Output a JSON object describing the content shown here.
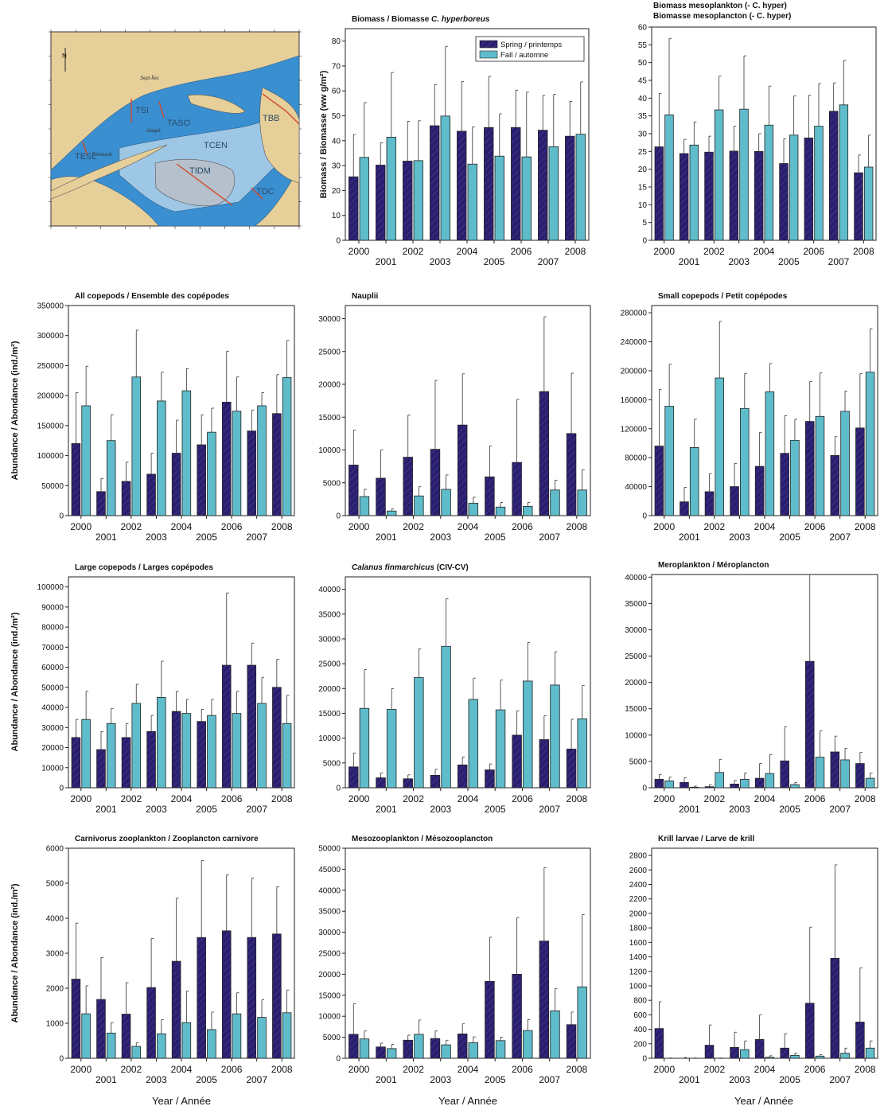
{
  "colors": {
    "spring": "#2a1f6e",
    "fall": "#5fbccb",
    "map_land": "#e7cf9a",
    "map_deep": "#3a8fd0",
    "map_shelf": "#9ec7e6",
    "map_island": "#b5c0cc",
    "map_section": "#d04a2a"
  },
  "legend": {
    "spring": "Spring / printemps",
    "fall": "Fall / automne"
  },
  "shared": {
    "ylabel_biomass": "Biomass / Biomasse (ww g/m²)",
    "ylabel_abundance": "Abundance / Abondance (ind./m²)",
    "xlabel": "Year / Année"
  },
  "map": {
    "labels": [
      "TESL",
      "TSI",
      "TASO",
      "TBB",
      "TCEN",
      "TIDM",
      "TDC"
    ],
    "places": [
      "Sept-Îles",
      "Gaspé",
      "Rimouski"
    ],
    "north": "N"
  },
  "chart_data": [
    {
      "type": "bar",
      "title": "Biomass / Biomasse C. hyperboreus",
      "title_parts": [
        "Biomass / Biomasse ",
        "C. hyperboreus"
      ],
      "ylim": [
        0,
        85
      ],
      "yticks": [
        0,
        10,
        20,
        30,
        40,
        50,
        60,
        70,
        80
      ],
      "years": [
        "2000",
        "2001",
        "2002",
        "2003",
        "2004",
        "2005",
        "2006",
        "2007",
        "2008"
      ],
      "series": [
        {
          "name": "Spring / printemps",
          "values": [
            25.5,
            30.2,
            31.8,
            46,
            43.8,
            45.3,
            45.3,
            44.2,
            41.8
          ],
          "errors": [
            17,
            9,
            16,
            16.5,
            20,
            20.5,
            15,
            14,
            14
          ]
        },
        {
          "name": "Fall / automne",
          "values": [
            33.3,
            41.4,
            32,
            49.9,
            30.6,
            33.8,
            33.5,
            37.6,
            42.6
          ],
          "errors": [
            22,
            26,
            16,
            28,
            15,
            17,
            26,
            21,
            21
          ]
        }
      ]
    },
    {
      "type": "bar",
      "title": "Biomass mesoplankton (- C. hyper) / Biomasse mesoplancton (- C. hyper)",
      "title_lines": [
        "Biomass mesoplankton (-  C. hyper)",
        "Biomasse mesoplancton (-  C. hyper)"
      ],
      "ylim": [
        0,
        60
      ],
      "yticks": [
        0,
        5,
        10,
        15,
        20,
        25,
        30,
        35,
        40,
        45,
        50,
        55,
        60
      ],
      "years": [
        "2000",
        "2001",
        "2002",
        "2003",
        "2004",
        "2005",
        "2006",
        "2007",
        "2008"
      ],
      "series": [
        {
          "name": "Spring / printemps",
          "values": [
            26.3,
            24.4,
            24.8,
            25.1,
            25,
            21.6,
            28.8,
            36.3,
            19
          ],
          "errors": [
            15,
            4,
            4.5,
            7,
            5,
            7,
            12,
            8,
            5
          ]
        },
        {
          "name": "Fall / automne",
          "values": [
            35.3,
            26.8,
            36.7,
            36.9,
            32.4,
            29.6,
            32.1,
            38.1,
            20.6
          ],
          "errors": [
            21.5,
            6.5,
            9.5,
            15,
            11,
            11,
            12,
            12.5,
            9
          ]
        }
      ]
    },
    {
      "type": "bar",
      "title": "All copepods / Ensemble des copépodes",
      "ylim": [
        0,
        350000
      ],
      "yticks": [
        0,
        50000,
        100000,
        150000,
        200000,
        250000,
        300000,
        350000
      ],
      "years": [
        "2000",
        "2001",
        "2002",
        "2003",
        "2004",
        "2005",
        "2006",
        "2007",
        "2008"
      ],
      "series": [
        {
          "name": "Spring / printemps",
          "values": [
            120000,
            40000,
            57000,
            69000,
            104000,
            118000,
            189000,
            141000,
            170000
          ],
          "errors": [
            85000,
            22000,
            32000,
            35000,
            55000,
            50000,
            85000,
            35000,
            65000
          ]
        },
        {
          "name": "Fall / automne",
          "values": [
            183000,
            125000,
            231000,
            191000,
            208000,
            139000,
            174000,
            183000,
            230000
          ],
          "errors": [
            66000,
            43000,
            78000,
            48000,
            37000,
            40000,
            57000,
            22000,
            62000
          ]
        }
      ]
    },
    {
      "type": "bar",
      "title": "Nauplii",
      "ylim": [
        0,
        32000
      ],
      "yticks": [
        0,
        5000,
        10000,
        15000,
        20000,
        25000,
        30000
      ],
      "years": [
        "2000",
        "2001",
        "2002",
        "2003",
        "2004",
        "2005",
        "2006",
        "2007",
        "2008"
      ],
      "series": [
        {
          "name": "Spring / printemps",
          "values": [
            7700,
            5700,
            8900,
            10100,
            13800,
            5900,
            8100,
            18900,
            12500
          ],
          "errors": [
            5300,
            4300,
            6400,
            10500,
            7800,
            4700,
            9600,
            11400,
            9200
          ]
        },
        {
          "name": "Fall / automne",
          "values": [
            2900,
            700,
            3000,
            4000,
            1900,
            1300,
            1400,
            3900,
            3900
          ],
          "errors": [
            1100,
            300,
            1400,
            2200,
            900,
            700,
            600,
            1500,
            3100
          ]
        }
      ]
    },
    {
      "type": "bar",
      "title": "Small copepods / Petit copépodes",
      "ylim": [
        0,
        290000
      ],
      "yticks": [
        0,
        40000,
        80000,
        120000,
        160000,
        200000,
        240000,
        280000
      ],
      "years": [
        "2000",
        "2001",
        "2002",
        "2003",
        "2004",
        "2005",
        "2006",
        "2007",
        "2008"
      ],
      "series": [
        {
          "name": "Spring / printemps",
          "values": [
            96000,
            19000,
            33000,
            40000,
            68000,
            86000,
            130000,
            83000,
            121000
          ],
          "errors": [
            78000,
            20000,
            25000,
            32000,
            47000,
            52000,
            55000,
            26000,
            75000
          ]
        },
        {
          "name": "Fall / automne",
          "values": [
            151000,
            94000,
            190000,
            148000,
            171000,
            104000,
            137000,
            144000,
            198000
          ],
          "errors": [
            58000,
            39000,
            78000,
            48000,
            39000,
            29000,
            60000,
            28000,
            60000
          ]
        }
      ]
    },
    {
      "type": "bar",
      "title": "Large copepods / Larges copépodes",
      "ylim": [
        0,
        105000
      ],
      "yticks": [
        0,
        10000,
        20000,
        30000,
        40000,
        50000,
        60000,
        70000,
        80000,
        90000,
        100000
      ],
      "years": [
        "2000",
        "2001",
        "2002",
        "2003",
        "2004",
        "2005",
        "2006",
        "2007",
        "2008"
      ],
      "series": [
        {
          "name": "Spring / printemps",
          "values": [
            25000,
            19000,
            25000,
            28000,
            38000,
            33000,
            61000,
            61000,
            50000
          ],
          "errors": [
            9000,
            9000,
            7000,
            8000,
            10000,
            6000,
            36000,
            11000,
            14000
          ]
        },
        {
          "name": "Fall / automne",
          "values": [
            34000,
            32000,
            42000,
            45000,
            37000,
            36000,
            37000,
            42000,
            32000
          ],
          "errors": [
            14000,
            7500,
            9500,
            18000,
            7000,
            8000,
            11000,
            13000,
            14000
          ]
        }
      ]
    },
    {
      "type": "bar",
      "title": "Calanus finmarchicus (CIV-CV)",
      "title_parts": [
        "Calanus finmarchicus",
        "  (CIV-CV)"
      ],
      "ylim": [
        0,
        42500
      ],
      "yticks": [
        0,
        5000,
        10000,
        15000,
        20000,
        25000,
        30000,
        35000,
        40000
      ],
      "years": [
        "2000",
        "2001",
        "2002",
        "2003",
        "2004",
        "2005",
        "2006",
        "2007",
        "2008"
      ],
      "series": [
        {
          "name": "Spring / printemps",
          "values": [
            4200,
            2000,
            1800,
            2500,
            4600,
            3600,
            10600,
            9700,
            7800
          ],
          "errors": [
            2800,
            1000,
            800,
            1200,
            1600,
            1200,
            4900,
            4800,
            6000
          ]
        },
        {
          "name": "Fall / automne",
          "values": [
            16000,
            15800,
            22200,
            28500,
            17800,
            15700,
            21500,
            20700,
            13900
          ],
          "errors": [
            7800,
            4200,
            5800,
            9600,
            4300,
            6000,
            7800,
            6700,
            6700
          ]
        }
      ]
    },
    {
      "type": "bar",
      "title": "Meroplankton / Méroplancton",
      "ylim": [
        0,
        40500
      ],
      "yticks": [
        0,
        5000,
        10000,
        15000,
        20000,
        25000,
        30000,
        35000,
        40000
      ],
      "years": [
        "2000",
        "2001",
        "2002",
        "2003",
        "2004",
        "2005",
        "2006",
        "2007",
        "2008"
      ],
      "series": [
        {
          "name": "Spring / printemps",
          "values": [
            1600,
            1000,
            200,
            700,
            1800,
            5100,
            24000,
            6800,
            4600
          ],
          "errors": [
            900,
            900,
            400,
            700,
            2800,
            6500,
            16500,
            3000,
            2100
          ]
        },
        {
          "name": "Fall / automne",
          "values": [
            1300,
            100,
            2900,
            1600,
            2700,
            600,
            5800,
            5300,
            1800
          ],
          "errors": [
            700,
            200,
            2500,
            1200,
            3600,
            400,
            5000,
            2200,
            1000
          ]
        }
      ]
    },
    {
      "type": "bar",
      "title": "Carnivorus zooplankton / Zooplancton carnivore",
      "ylim": [
        0,
        6000
      ],
      "yticks": [
        0,
        1000,
        2000,
        3000,
        4000,
        5000,
        6000
      ],
      "years": [
        "2000",
        "2001",
        "2002",
        "2003",
        "2004",
        "2005",
        "2006",
        "2007",
        "2008"
      ],
      "series": [
        {
          "name": "Spring / printemps",
          "values": [
            2260,
            1680,
            1260,
            2020,
            2770,
            3450,
            3640,
            3450,
            3550
          ],
          "errors": [
            1600,
            1200,
            900,
            1400,
            1800,
            2200,
            1600,
            1700,
            1350
          ]
        },
        {
          "name": "Fall / automne",
          "values": [
            1270,
            720,
            340,
            700,
            1020,
            820,
            1270,
            1170,
            1300
          ],
          "errors": [
            800,
            300,
            100,
            400,
            900,
            500,
            600,
            500,
            650
          ]
        }
      ]
    },
    {
      "type": "bar",
      "title": "Mesozooplankton / Mésozooplancton",
      "ylim": [
        0,
        50000
      ],
      "yticks": [
        0,
        5000,
        10000,
        15000,
        20000,
        25000,
        30000,
        35000,
        40000,
        45000,
        50000
      ],
      "years": [
        "2000",
        "2001",
        "2002",
        "2003",
        "2004",
        "2005",
        "2006",
        "2007",
        "2008"
      ],
      "series": [
        {
          "name": "Spring / printemps",
          "values": [
            5700,
            2700,
            4300,
            4700,
            5800,
            18300,
            20000,
            27900,
            8000
          ],
          "errors": [
            7300,
            900,
            1200,
            1800,
            2400,
            10500,
            13500,
            17500,
            3000
          ]
        },
        {
          "name": "Fall / automne",
          "values": [
            4600,
            2300,
            5700,
            3200,
            3700,
            4200,
            6600,
            11300,
            17000
          ],
          "errors": [
            1900,
            1000,
            3400,
            1100,
            1400,
            800,
            2600,
            5300,
            17200
          ]
        }
      ]
    },
    {
      "type": "bar",
      "title": "Krill larvae / Larve de krill",
      "ylim": [
        0,
        2900
      ],
      "yticks": [
        0,
        200,
        400,
        600,
        800,
        1000,
        1200,
        1400,
        1600,
        1800,
        2000,
        2200,
        2400,
        2600,
        2800
      ],
      "years": [
        "2000",
        "2001",
        "2002",
        "2003",
        "2004",
        "2005",
        "2006",
        "2007",
        "2008"
      ],
      "series": [
        {
          "name": "Spring / printemps",
          "values": [
            410,
            0,
            180,
            150,
            260,
            140,
            760,
            1380,
            500
          ],
          "errors": [
            370,
            10,
            280,
            210,
            340,
            200,
            1050,
            1290,
            750
          ]
        },
        {
          "name": "Fall / automne",
          "values": [
            0,
            0,
            0,
            120,
            15,
            40,
            30,
            70,
            140
          ],
          "errors": [
            5,
            5,
            5,
            120,
            20,
            30,
            20,
            70,
            100
          ]
        }
      ]
    }
  ]
}
